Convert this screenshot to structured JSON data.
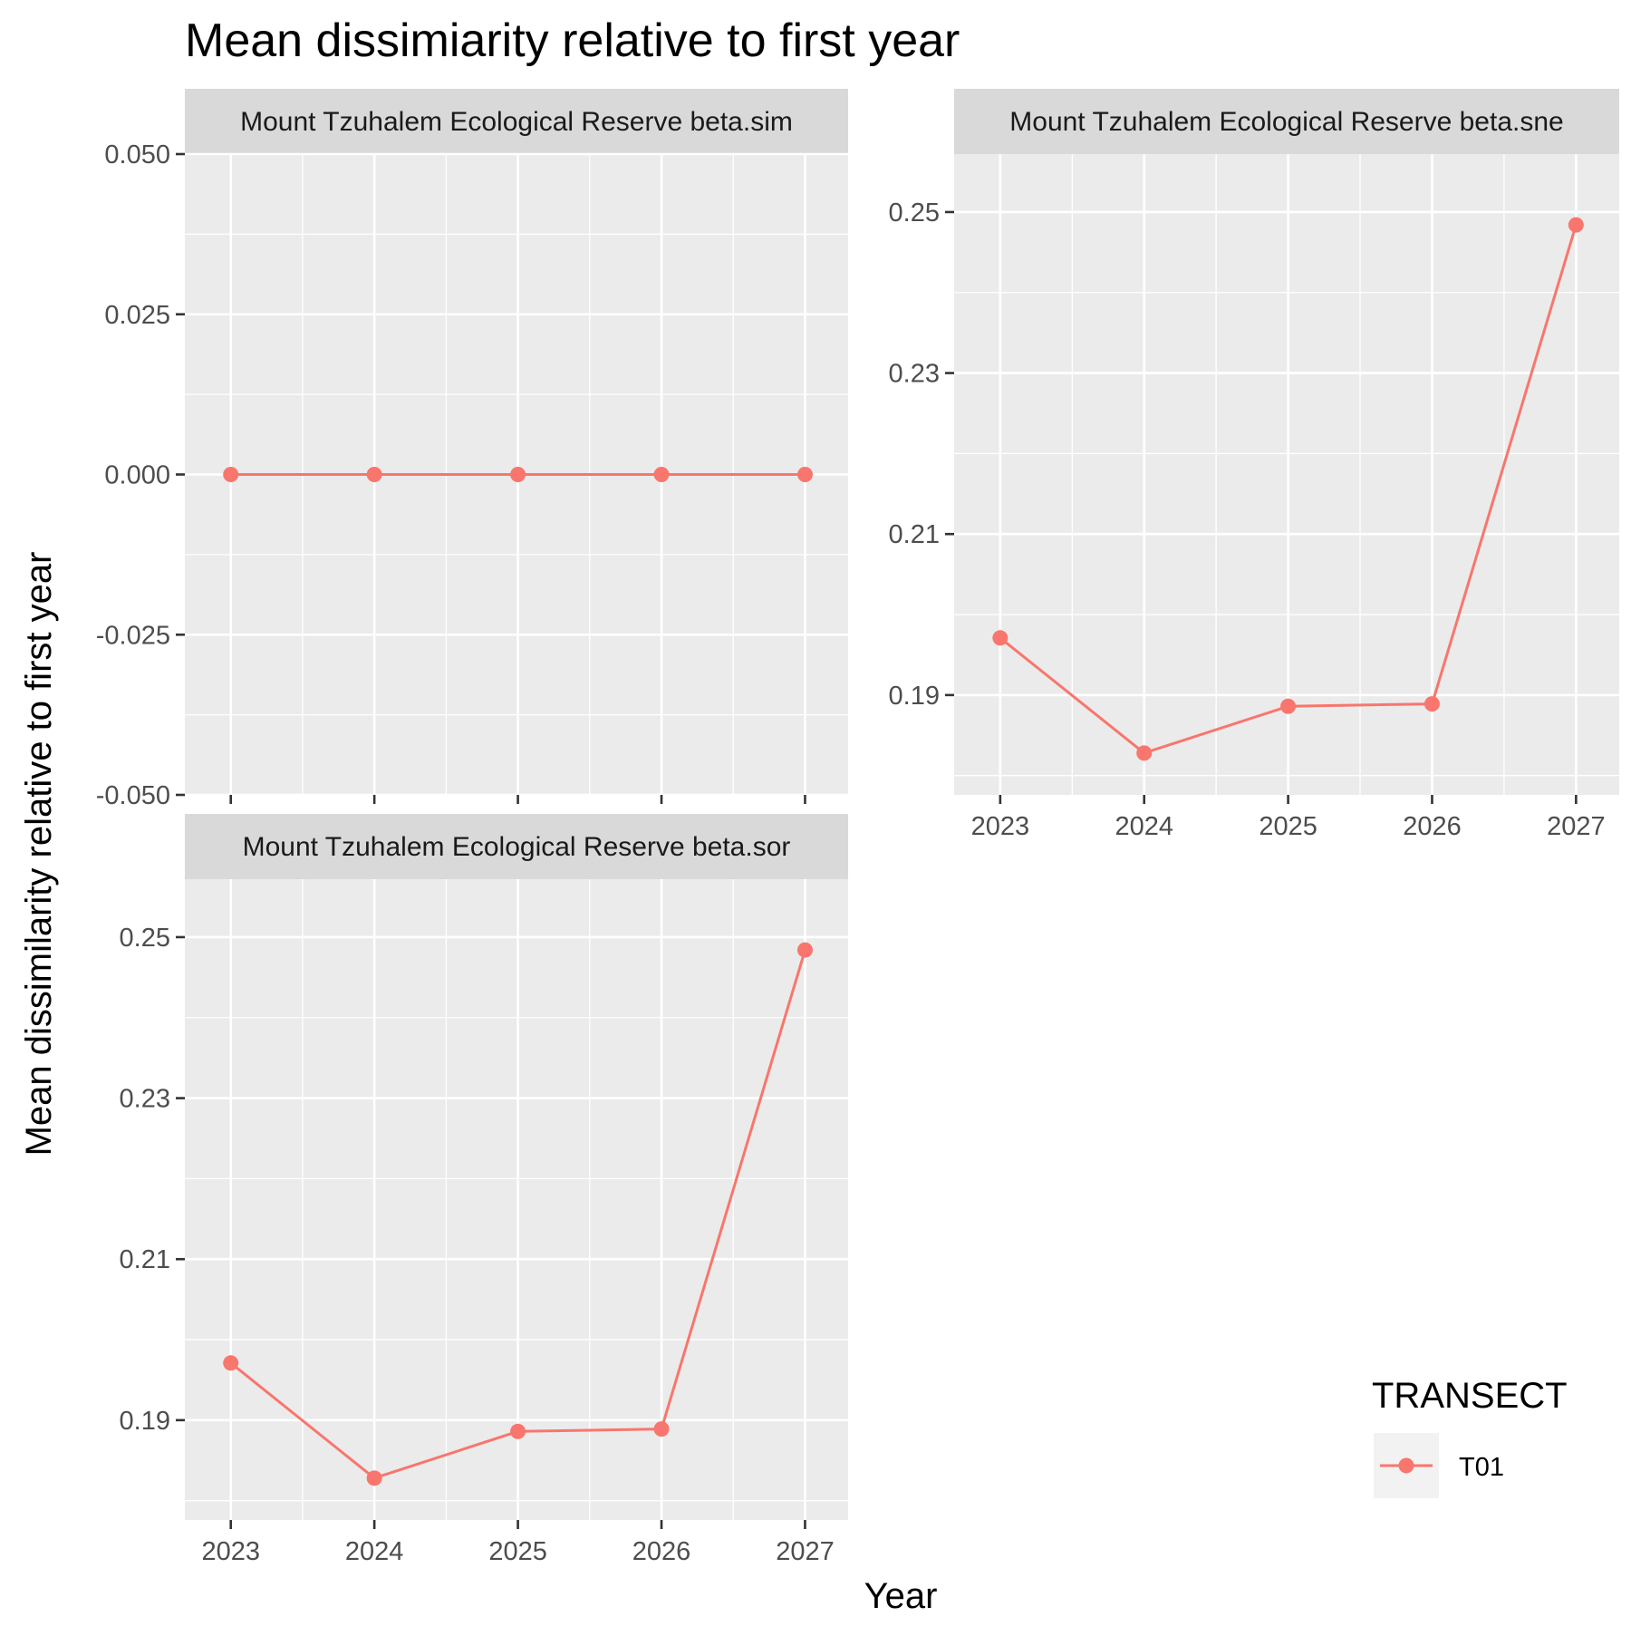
{
  "chart_data": {
    "type": "line",
    "title": "Mean dissimiarity relative to first year",
    "xlabel": "Year",
    "ylabel": "Mean dissimilarity relative to first year",
    "legend": {
      "title": "TRANSECT",
      "placement": "bottom-right",
      "entries": [
        "T01"
      ]
    },
    "series_color": "#F8766D",
    "grid": true,
    "facets": [
      {
        "strip": "Mount Tzuhalem Ecological Reserve beta.sim",
        "x": [
          2023,
          2024,
          2025,
          2026,
          2027
        ],
        "series": [
          {
            "name": "T01",
            "values": [
              0.0,
              0.0,
              0.0,
              0.0,
              0.0
            ]
          }
        ],
        "ylim": [
          -0.05,
          0.05
        ],
        "yticks": [
          -0.05,
          -0.025,
          0.0,
          0.025,
          0.05
        ],
        "ytick_labels": [
          "-0.050",
          "-0.025",
          "0.000",
          "0.025",
          "0.050"
        ],
        "show_xticks": false
      },
      {
        "strip": "Mount Tzuhalem Ecological Reserve beta.sne",
        "x": [
          2023,
          2024,
          2025,
          2026,
          2027
        ],
        "series": [
          {
            "name": "T01",
            "values": [
              0.1971,
              0.1828,
              0.1886,
              0.1889,
              0.2484
            ]
          }
        ],
        "ylim": [
          0.1776,
          0.2572
        ],
        "yticks": [
          0.19,
          0.21,
          0.23,
          0.25
        ],
        "ytick_labels": [
          "0.19",
          "0.21",
          "0.23",
          "0.25"
        ],
        "show_xticks": true
      },
      {
        "strip": "Mount Tzuhalem Ecological Reserve beta.sor",
        "x": [
          2023,
          2024,
          2025,
          2026,
          2027
        ],
        "series": [
          {
            "name": "T01",
            "values": [
              0.1971,
              0.1828,
              0.1886,
              0.1889,
              0.2484
            ]
          }
        ],
        "ylim": [
          0.1776,
          0.2572
        ],
        "yticks": [
          0.19,
          0.21,
          0.23,
          0.25
        ],
        "ytick_labels": [
          "0.19",
          "0.21",
          "0.23",
          "0.25"
        ],
        "show_xticks": true
      }
    ],
    "xticks": [
      2023,
      2024,
      2025,
      2026,
      2027
    ],
    "xtick_labels": [
      "2023",
      "2024",
      "2025",
      "2026",
      "2027"
    ]
  }
}
